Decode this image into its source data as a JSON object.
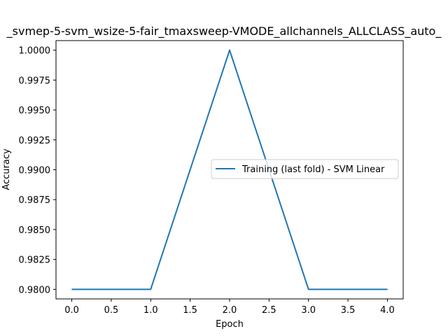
{
  "chart_data": {
    "type": "line",
    "title": "_svmep-5-svm_wsize-5-fair_tmaxsweep-VMODE_allchannels_ALLCLASS_auto_",
    "xlabel": "Epoch",
    "ylabel": "Accuracy",
    "xlim": [
      -0.2,
      4.2
    ],
    "ylim": [
      0.9792,
      1.0008
    ],
    "xticks": [
      0.0,
      0.5,
      1.0,
      1.5,
      2.0,
      2.5,
      3.0,
      3.5,
      4.0
    ],
    "xtick_labels": [
      "0.0",
      "0.5",
      "1.0",
      "1.5",
      "2.0",
      "2.5",
      "3.0",
      "3.5",
      "4.0"
    ],
    "yticks": [
      0.98,
      0.9825,
      0.985,
      0.9875,
      0.99,
      0.9925,
      0.995,
      0.9975,
      1.0
    ],
    "ytick_labels": [
      "0.9800",
      "0.9825",
      "0.9850",
      "0.9875",
      "0.9900",
      "0.9925",
      "0.9950",
      "0.9975",
      "1.0000"
    ],
    "grid": false,
    "legend_position": "center-right",
    "series": [
      {
        "name": "Training (last fold) - SVM Linear",
        "color": "#1f77b4",
        "x": [
          0,
          1,
          2,
          3,
          4
        ],
        "y": [
          0.98,
          0.98,
          1.0,
          0.98,
          0.98
        ]
      }
    ]
  }
}
